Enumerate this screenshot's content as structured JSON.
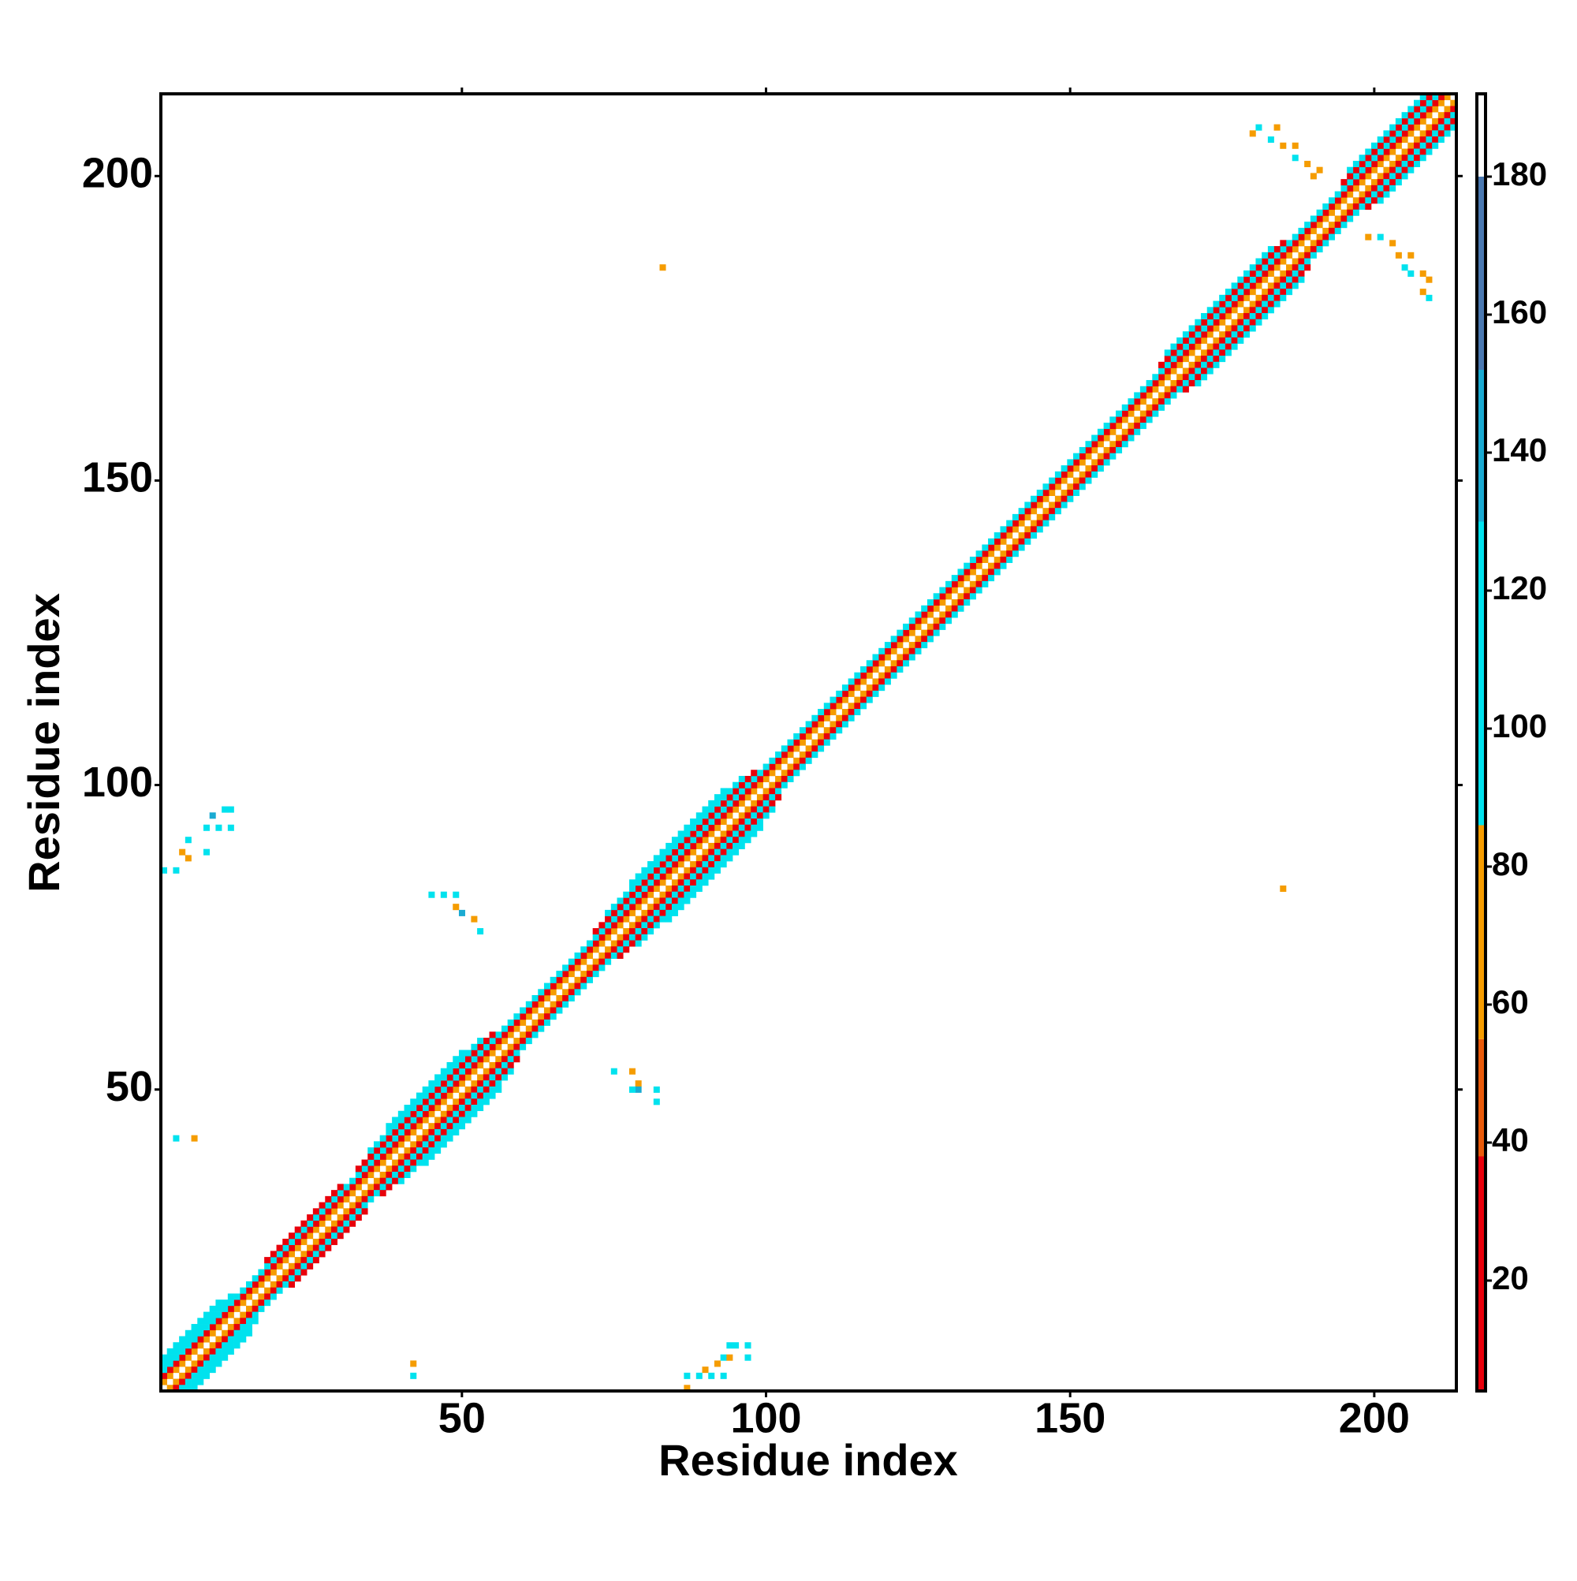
{
  "chart_data": {
    "type": "heatmap",
    "x_label": "Residue index",
    "y_label": "Residue index",
    "xlim": [
      0.5,
      213.5
    ],
    "ylim": [
      0.5,
      213.5
    ],
    "xticks": [
      50,
      100,
      150,
      200
    ],
    "yticks": [
      50,
      100,
      150,
      200
    ],
    "bands": [
      {
        "from": 1,
        "to": 212,
        "offset": 1,
        "value": 70
      },
      {
        "from": 1,
        "to": 211,
        "offset": 2,
        "value": 20
      },
      {
        "from": 1,
        "to": 210,
        "offset": 3,
        "value": 100
      },
      {
        "from": 1,
        "to": 12,
        "offset": 4,
        "value": 100
      },
      {
        "from": 18,
        "to": 30,
        "offset": 4,
        "value": 20
      },
      {
        "from": 33,
        "to": 55,
        "offset": 4,
        "value": 20
      },
      {
        "from": 72,
        "to": 98,
        "offset": 4,
        "value": 20
      },
      {
        "from": 165,
        "to": 185,
        "offset": 4,
        "value": 20
      },
      {
        "from": 195,
        "to": 209,
        "offset": 4,
        "value": 20
      },
      {
        "from": 1,
        "to": 10,
        "offset": 5,
        "value": 100
      },
      {
        "from": 35,
        "to": 53,
        "offset": 5,
        "value": 100
      },
      {
        "from": 74,
        "to": 96,
        "offset": 5,
        "value": 100
      },
      {
        "from": 166,
        "to": 183,
        "offset": 5,
        "value": 100
      },
      {
        "from": 196,
        "to": 208,
        "offset": 5,
        "value": 100
      },
      {
        "from": 38,
        "to": 50,
        "offset": 6,
        "value": 100
      },
      {
        "from": 78,
        "to": 93,
        "offset": 6,
        "value": 100
      }
    ],
    "cells": [
      [
        1,
        86,
        100
      ],
      [
        3,
        86,
        100
      ],
      [
        5,
        88,
        70
      ],
      [
        4,
        89,
        70
      ],
      [
        5,
        91,
        100
      ],
      [
        8,
        89,
        100
      ],
      [
        8,
        93,
        100
      ],
      [
        9,
        95,
        140
      ],
      [
        10,
        93,
        100
      ],
      [
        12,
        93,
        100
      ],
      [
        12,
        96,
        100
      ],
      [
        11,
        96,
        100
      ],
      [
        3,
        42,
        100
      ],
      [
        6,
        42,
        70
      ],
      [
        45,
        82,
        100
      ],
      [
        47,
        82,
        100
      ],
      [
        49,
        82,
        100
      ],
      [
        49,
        80,
        70
      ],
      [
        50,
        79,
        140
      ],
      [
        52,
        78,
        70
      ],
      [
        53,
        76,
        100
      ],
      [
        75,
        53,
        100
      ],
      [
        78,
        53,
        70
      ],
      [
        79,
        51,
        70
      ],
      [
        79,
        50,
        140
      ],
      [
        78,
        50,
        100
      ],
      [
        82,
        50,
        100
      ],
      [
        82,
        48,
        100
      ],
      [
        87,
        3,
        100
      ],
      [
        87,
        1,
        70
      ],
      [
        89,
        3,
        100
      ],
      [
        90,
        4,
        70
      ],
      [
        91,
        3,
        100
      ],
      [
        92,
        5,
        70
      ],
      [
        93,
        3,
        100
      ],
      [
        93,
        6,
        100
      ],
      [
        94,
        8,
        100
      ],
      [
        95,
        8,
        100
      ],
      [
        97,
        8,
        100
      ],
      [
        94,
        6,
        70
      ],
      [
        97,
        6,
        100
      ],
      [
        42,
        5,
        70
      ],
      [
        42,
        3,
        100
      ],
      [
        83,
        185,
        70
      ],
      [
        185,
        83,
        70
      ],
      [
        180,
        207,
        70
      ],
      [
        181,
        208,
        100
      ],
      [
        184,
        208,
        70
      ],
      [
        183,
        206,
        100
      ],
      [
        185,
        205,
        70
      ],
      [
        187,
        203,
        100
      ],
      [
        187,
        205,
        70
      ],
      [
        189,
        202,
        70
      ],
      [
        191,
        201,
        70
      ],
      [
        190,
        200,
        70
      ],
      [
        199,
        190,
        70
      ],
      [
        201,
        190,
        100
      ],
      [
        203,
        189,
        70
      ],
      [
        204,
        187,
        70
      ],
      [
        206,
        187,
        70
      ],
      [
        205,
        185,
        100
      ],
      [
        206,
        184,
        100
      ],
      [
        208,
        184,
        70
      ],
      [
        209,
        183,
        70
      ],
      [
        208,
        181,
        70
      ],
      [
        209,
        180,
        100
      ]
    ],
    "colorbar": {
      "lim": [
        4,
        192
      ],
      "ticks": [
        20,
        40,
        60,
        80,
        100,
        120,
        140,
        160,
        180
      ],
      "scale": [
        {
          "to": 38,
          "color": "#e8000b"
        },
        {
          "to": 55,
          "color": "#e85a0a"
        },
        {
          "to": 86,
          "color": "#f59c00"
        },
        {
          "to": 130,
          "color": "#00e2ee"
        },
        {
          "to": 152,
          "color": "#1aaad2"
        },
        {
          "to": 180,
          "color": "#4a78b0"
        },
        {
          "to": 192,
          "color": "#ffffff"
        }
      ]
    }
  }
}
